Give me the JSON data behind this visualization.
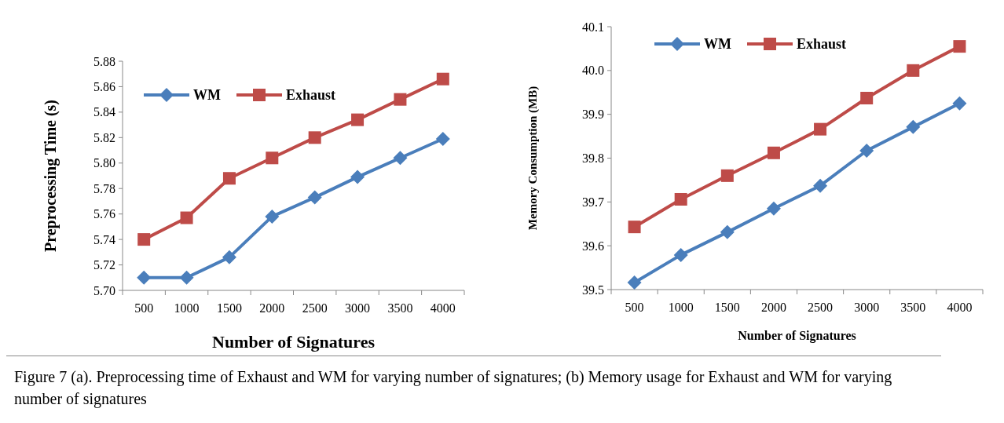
{
  "chart_data": [
    {
      "type": "line",
      "xlabel": "Number of Signatures",
      "ylabel": "Preprocessing Time (s)",
      "categories": [
        "500",
        "1000",
        "1500",
        "2000",
        "2500",
        "3000",
        "3500",
        "4000"
      ],
      "series": [
        {
          "name": "WM",
          "color": "#4a7ebb",
          "marker": "diamond",
          "values": [
            5.71,
            5.71,
            5.726,
            5.758,
            5.773,
            5.789,
            5.804,
            5.819
          ]
        },
        {
          "name": "Exhaust",
          "color": "#be4b48",
          "marker": "square",
          "values": [
            5.74,
            5.757,
            5.788,
            5.804,
            5.82,
            5.834,
            5.85,
            5.866
          ]
        }
      ],
      "ylim": [
        5.7,
        5.88
      ],
      "yticks": [
        {
          "value": 5.7,
          "label": "5.70"
        },
        {
          "value": 5.72,
          "label": "5.72"
        },
        {
          "value": 5.74,
          "label": "5.74"
        },
        {
          "value": 5.76,
          "label": "5.76"
        },
        {
          "value": 5.78,
          "label": "5.78"
        },
        {
          "value": 5.8,
          "label": "5.80"
        },
        {
          "value": 5.82,
          "label": "5.82"
        },
        {
          "value": 5.84,
          "label": "5.84"
        },
        {
          "value": 5.86,
          "label": "5.86"
        },
        {
          "value": 5.88,
          "label": "5.88"
        }
      ],
      "legend": "top left",
      "grid": false,
      "annotations": [
        "Figure 7 (a). Preprocessing time of Exhaust and WM for varying number of signatures; (b) Memory usage for Exhaust and WM for varying number of signatures"
      ]
    },
    {
      "type": "line",
      "xlabel": "Number of  Signatures",
      "ylabel": "Memory Consumption (MB)",
      "categories": [
        "500",
        "1000",
        "1500",
        "2000",
        "2500",
        "3000",
        "3500",
        "4000"
      ],
      "series": [
        {
          "name": "WM",
          "color": "#4a7ebb",
          "marker": "diamond",
          "values": [
            39.516,
            39.579,
            39.631,
            39.685,
            39.737,
            39.817,
            39.871,
            39.925
          ]
        },
        {
          "name": "Exhaust",
          "color": "#be4b48",
          "marker": "square",
          "values": [
            39.643,
            39.706,
            39.76,
            39.812,
            39.866,
            39.937,
            40.0,
            40.055
          ]
        }
      ],
      "ylim": [
        39.5,
        40.1
      ],
      "yticks": [
        39.5,
        39.6,
        39.7,
        39.8,
        39.9,
        {
          "value": 40,
          "label": "40.0"
        },
        40.1
      ],
      "legend": "top",
      "grid": false
    }
  ]
}
